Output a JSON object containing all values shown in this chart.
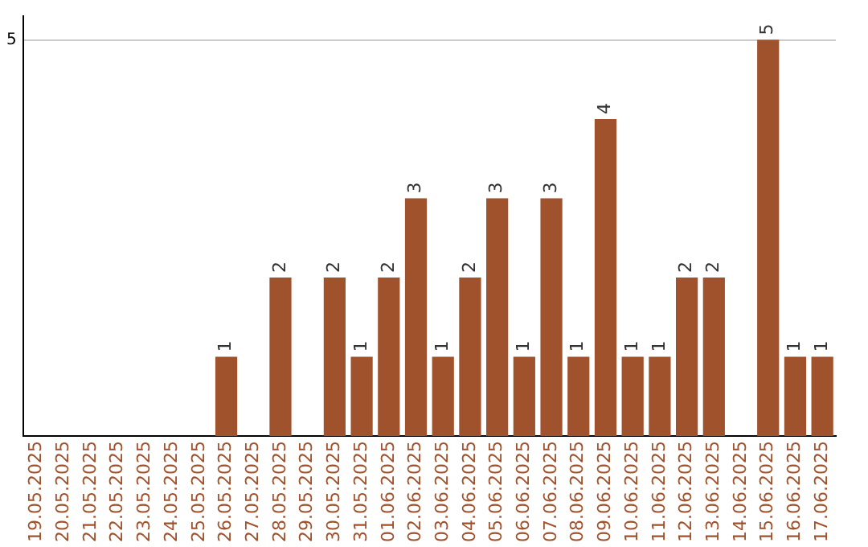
{
  "chart_data": {
    "type": "bar",
    "categories": [
      "19.05.2025",
      "20.05.2025",
      "21.05.2025",
      "22.05.2025",
      "23.05.2025",
      "24.05.2025",
      "25.05.2025",
      "26.05.2025",
      "27.05.2025",
      "28.05.2025",
      "29.05.2025",
      "30.05.2025",
      "31.05.2025",
      "01.06.2025",
      "02.06.2025",
      "03.06.2025",
      "04.06.2025",
      "05.06.2025",
      "06.06.2025",
      "07.06.2025",
      "08.06.2025",
      "09.06.2025",
      "10.06.2025",
      "11.06.2025",
      "12.06.2025",
      "13.06.2025",
      "14.06.2025",
      "15.06.2025",
      "16.06.2025",
      "17.06.2025"
    ],
    "values": [
      0,
      0,
      0,
      0,
      0,
      0,
      0,
      1,
      0,
      2,
      0,
      2,
      1,
      2,
      3,
      1,
      2,
      3,
      1,
      3,
      1,
      4,
      1,
      1,
      2,
      2,
      0,
      5,
      1,
      1
    ],
    "value_labels": [
      null,
      null,
      null,
      null,
      null,
      null,
      null,
      "1",
      null,
      "2",
      null,
      "2",
      "1",
      "2",
      "3",
      "1",
      "2",
      "3",
      "1",
      "3",
      "1",
      "4",
      "1",
      "1",
      "2",
      "2",
      null,
      "5",
      "1",
      "1"
    ],
    "color": "#a0522d",
    "ylim": [
      0,
      5.3
    ],
    "yticks": [
      5
    ],
    "grid": "y",
    "legend": false
  }
}
